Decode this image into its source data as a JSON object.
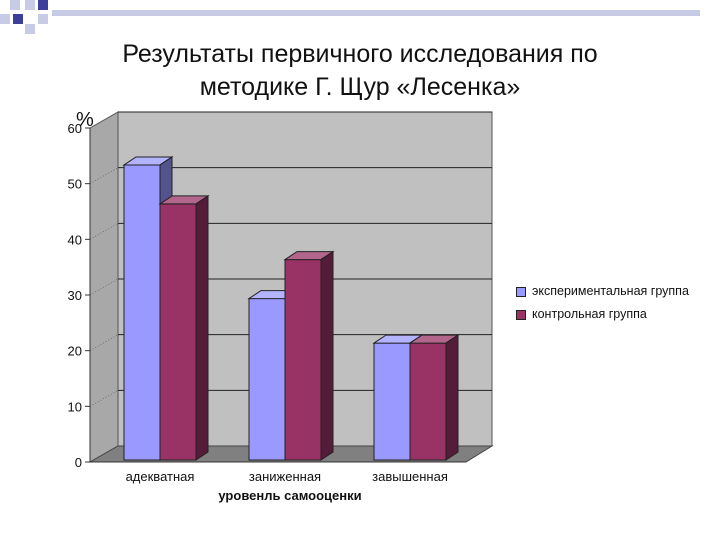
{
  "slide": {
    "title_line1": "Результаты первичного исследования по",
    "title_line2": "методике Г. Щур «Лесенка»"
  },
  "colors": {
    "deco_dark": "#3d3f9a",
    "deco_light": "#c8cbe6",
    "wall": "#c0c0c0",
    "floor": "#808080",
    "series1": "#9999ff",
    "series2": "#993366"
  },
  "chart_data": {
    "type": "bar",
    "title": "",
    "xlabel": "уровенль самооценки",
    "ylabel": "%",
    "ylim": [
      0,
      60
    ],
    "yticks": [
      "0",
      "10",
      "20",
      "30",
      "40",
      "50",
      "60"
    ],
    "grid": true,
    "legend_position": "right",
    "categories": [
      "адекватная",
      "заниженная",
      "завышенная"
    ],
    "series": [
      {
        "name": "экспериментальная группа",
        "values": [
          53,
          29,
          21
        ]
      },
      {
        "name": "контрольная группа",
        "values": [
          46,
          36,
          21
        ]
      }
    ]
  }
}
